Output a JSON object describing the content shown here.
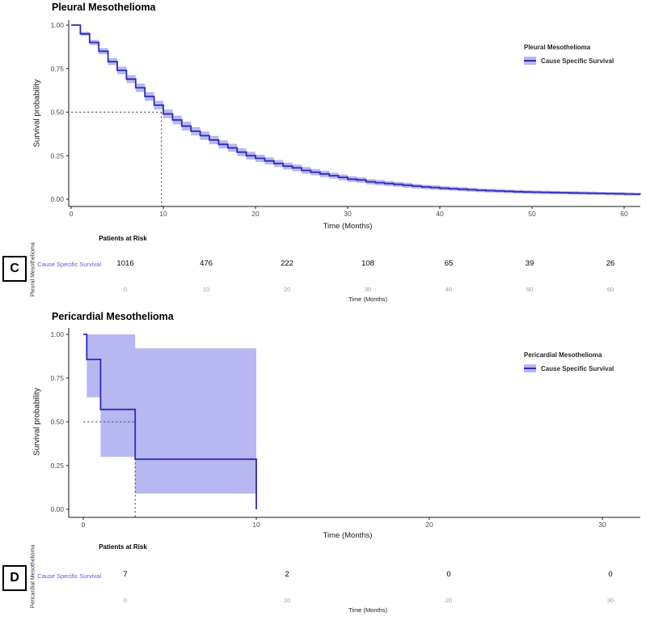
{
  "colors": {
    "line": "#2b2bb8",
    "ribbon": "#b7b7f2",
    "median_dash": "#555555",
    "axis": "#1a1a1a",
    "axis_text": "#4d4d4d",
    "risk_row_label": "#5c5cd6",
    "muted_tick": "#9e9e9e"
  },
  "chart_data": [
    {
      "type": "line",
      "km_style": "step",
      "title": "Pleural Mesothelioma",
      "xlabel": "Time (Months)",
      "ylabel": "Survival probability",
      "panel_letter": "C",
      "legend_position": "right",
      "legend_title": "Pleural Mesothelioma",
      "legend_label": "Cause Specific Survival",
      "grid": false,
      "x_ticks": [
        0,
        10,
        20,
        30,
        40,
        50,
        60
      ],
      "y_tick_labels": [
        "0.00",
        "0.25",
        "0.50",
        "0.75",
        "1.00"
      ],
      "xlim": [
        0,
        63
      ],
      "ylim": [
        0,
        1
      ],
      "median_months": 9.8,
      "x_months_start": 0,
      "x_months_step": 1,
      "survival": [
        1.0,
        0.95,
        0.9,
        0.85,
        0.79,
        0.74,
        0.69,
        0.64,
        0.59,
        0.54,
        0.49,
        0.455,
        0.42,
        0.39,
        0.365,
        0.34,
        0.315,
        0.295,
        0.27,
        0.25,
        0.235,
        0.22,
        0.205,
        0.19,
        0.18,
        0.165,
        0.155,
        0.145,
        0.135,
        0.125,
        0.115,
        0.11,
        0.1,
        0.095,
        0.09,
        0.085,
        0.08,
        0.075,
        0.07,
        0.067,
        0.063,
        0.06,
        0.057,
        0.054,
        0.051,
        0.049,
        0.047,
        0.045,
        0.043,
        0.041,
        0.04,
        0.039,
        0.038,
        0.037,
        0.036,
        0.035,
        0.034,
        0.033,
        0.032,
        0.031,
        0.03,
        0.029,
        0.028,
        0.028
      ],
      "ci_halfwidths": [
        0,
        0.011,
        0.015,
        0.018,
        0.02,
        0.022,
        0.023,
        0.024,
        0.025,
        0.025,
        0.025,
        0.025,
        0.025,
        0.024,
        0.024,
        0.024,
        0.023,
        0.023,
        0.022,
        0.022,
        0.021,
        0.021,
        0.02,
        0.02,
        0.019,
        0.019,
        0.018,
        0.018,
        0.017,
        0.017,
        0.016,
        0.016,
        0.015,
        0.015,
        0.014,
        0.014,
        0.014,
        0.013,
        0.013,
        0.013,
        0.012,
        0.012,
        0.012,
        0.011,
        0.011,
        0.011,
        0.011,
        0.01,
        0.01,
        0.01,
        0.01,
        0.01,
        0.01,
        0.009,
        0.009,
        0.009,
        0.009,
        0.009,
        0.009,
        0.009,
        0.009,
        0.008,
        0.008,
        0.008
      ],
      "risk_table": {
        "header": "Patients at Risk",
        "row_label": "Cause Specific Survival",
        "side_label": "Pleural Mesothelioma",
        "xlabel": "Time (Months)",
        "times": [
          0,
          10,
          20,
          30,
          40,
          50,
          60
        ],
        "counts": [
          1016,
          476,
          222,
          108,
          65,
          39,
          26
        ]
      }
    },
    {
      "type": "line",
      "km_style": "step",
      "title": "Pericardial Mesothelioma",
      "xlabel": "Time (Months)",
      "ylabel": "Survival probability",
      "panel_letter": "D",
      "legend_position": "right",
      "legend_title": "Pericardial Mesothelioma",
      "legend_label": "Cause Specific Survival",
      "grid": false,
      "x_ticks": [
        0,
        10,
        20,
        30
      ],
      "y_tick_labels": [
        "0.00",
        "0.25",
        "0.50",
        "0.75",
        "1.00"
      ],
      "xlim": [
        0,
        32
      ],
      "ylim": [
        0,
        1
      ],
      "median_months": 3,
      "x": [
        0,
        0.2,
        1,
        3,
        10
      ],
      "survival": [
        1.0,
        0.857,
        0.571,
        0.286,
        0.0
      ],
      "ci_upper_points": [
        [
          0.2,
          1.0
        ],
        [
          3,
          1.0
        ],
        [
          3,
          0.92
        ],
        [
          10,
          0.92
        ]
      ],
      "ci_lower_points": [
        [
          0.2,
          0.64
        ],
        [
          1,
          0.64
        ],
        [
          1,
          0.3
        ],
        [
          3,
          0.3
        ],
        [
          3,
          0.09
        ],
        [
          10,
          0.09
        ]
      ],
      "risk_table": {
        "header": "Patients at Risk",
        "row_label": "Cause Specific Survival",
        "side_label": "Pericardial Mesothelioma",
        "xlabel": "Time (Months)",
        "times": [
          0,
          10,
          20,
          30
        ],
        "counts": [
          7,
          2,
          0,
          0
        ]
      }
    }
  ]
}
